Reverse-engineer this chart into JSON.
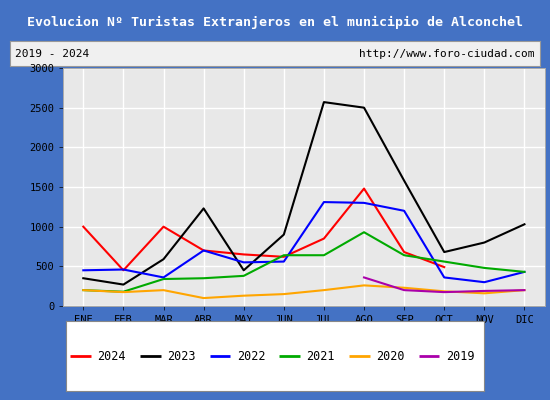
{
  "title": "Evolucion Nº Turistas Extranjeros en el municipio de Alconchel",
  "subtitle_left": "2019 - 2024",
  "subtitle_right": "http://www.foro-ciudad.com",
  "months": [
    "ENE",
    "FEB",
    "MAR",
    "ABR",
    "MAY",
    "JUN",
    "JUL",
    "AGO",
    "SEP",
    "OCT",
    "NOV",
    "DIC"
  ],
  "ylim": [
    0,
    3000
  ],
  "yticks": [
    0,
    500,
    1000,
    1500,
    2000,
    2500,
    3000
  ],
  "series": {
    "2024": {
      "color": "#ff0000",
      "values": [
        1000,
        450,
        1000,
        700,
        650,
        620,
        850,
        1480,
        680,
        490,
        null,
        null
      ]
    },
    "2023": {
      "color": "#000000",
      "values": [
        350,
        270,
        590,
        1230,
        450,
        900,
        2570,
        2500,
        1580,
        680,
        800,
        1030
      ]
    },
    "2022": {
      "color": "#0000ff",
      "values": [
        450,
        460,
        360,
        700,
        550,
        560,
        1310,
        1300,
        1200,
        360,
        300,
        430
      ]
    },
    "2021": {
      "color": "#00aa00",
      "values": [
        200,
        180,
        340,
        350,
        380,
        640,
        640,
        930,
        640,
        560,
        480,
        430
      ]
    },
    "2020": {
      "color": "#ffa500",
      "values": [
        200,
        175,
        200,
        100,
        130,
        150,
        200,
        260,
        230,
        185,
        160,
        200
      ]
    },
    "2019": {
      "color": "#aa00aa",
      "values": [
        null,
        null,
        null,
        null,
        null,
        null,
        null,
        360,
        200,
        175,
        190,
        200
      ]
    }
  },
  "title_bg_color": "#4472c4",
  "title_text_color": "#ffffff",
  "plot_bg_color": "#e8e8e8",
  "grid_color": "#ffffff",
  "border_color": "#4472c4",
  "fig_bg_color": "#4472c4",
  "legend_order": [
    "2024",
    "2023",
    "2022",
    "2021",
    "2020",
    "2019"
  ]
}
